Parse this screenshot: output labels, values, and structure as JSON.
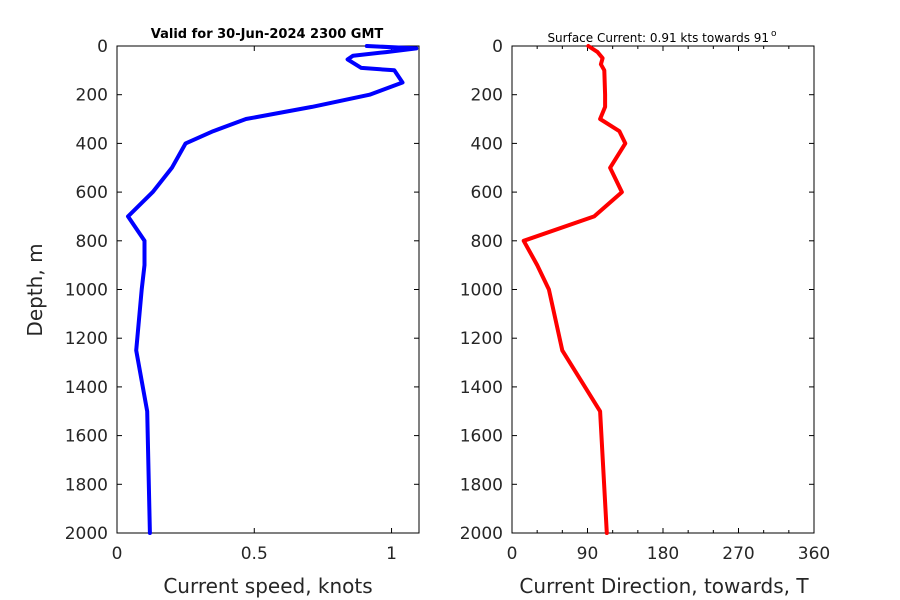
{
  "chart_data": [
    {
      "type": "line",
      "title": "Valid for 30-Jun-2024 2300 GMT",
      "xlabel": "Current speed, knots",
      "ylabel": "Depth, m",
      "xlim": [
        0,
        1.1
      ],
      "ylim": [
        0,
        2000
      ],
      "y_reversed": true,
      "xticks": [
        0,
        0.5,
        1
      ],
      "xtick_labels": [
        "0",
        "0.5",
        "1"
      ],
      "yticks": [
        0,
        200,
        400,
        600,
        800,
        1000,
        1200,
        1400,
        1600,
        1800,
        2000
      ],
      "ytick_labels": [
        "0",
        "200",
        "400",
        "600",
        "800",
        "1000",
        "1200",
        "1400",
        "1600",
        "1800",
        "2000"
      ],
      "grid": false,
      "series": [
        {
          "color": "#0000ff",
          "points": [
            {
              "speed": 0.91,
              "depth": 0
            },
            {
              "speed": 1.09,
              "depth": 10
            },
            {
              "speed": 0.98,
              "depth": 25
            },
            {
              "speed": 0.86,
              "depth": 40
            },
            {
              "speed": 0.84,
              "depth": 55
            },
            {
              "speed": 0.89,
              "depth": 90
            },
            {
              "speed": 1.01,
              "depth": 100
            },
            {
              "speed": 1.04,
              "depth": 150
            },
            {
              "speed": 0.92,
              "depth": 200
            },
            {
              "speed": 0.71,
              "depth": 250
            },
            {
              "speed": 0.47,
              "depth": 300
            },
            {
              "speed": 0.35,
              "depth": 350
            },
            {
              "speed": 0.25,
              "depth": 400
            },
            {
              "speed": 0.2,
              "depth": 500
            },
            {
              "speed": 0.13,
              "depth": 600
            },
            {
              "speed": 0.04,
              "depth": 700
            },
            {
              "speed": 0.1,
              "depth": 800
            },
            {
              "speed": 0.1,
              "depth": 900
            },
            {
              "speed": 0.09,
              "depth": 1000
            },
            {
              "speed": 0.07,
              "depth": 1250
            },
            {
              "speed": 0.11,
              "depth": 1500
            },
            {
              "speed": 0.12,
              "depth": 2000
            }
          ]
        }
      ]
    },
    {
      "type": "line",
      "title": "Surface Current: 0.91 kts towards 91",
      "title_superscript": "o",
      "xlabel": "Current Direction, towards, T",
      "ylabel": "",
      "xlim": [
        0,
        360
      ],
      "ylim": [
        0,
        2000
      ],
      "y_reversed": true,
      "xticks": [
        0,
        90,
        180,
        270,
        360
      ],
      "xtick_labels": [
        "0",
        "90",
        "180",
        "270",
        "360"
      ],
      "xminor_ticks": [
        30,
        60,
        120,
        150,
        210,
        240,
        300,
        330
      ],
      "yticks": [
        0,
        200,
        400,
        600,
        800,
        1000,
        1200,
        1400,
        1600,
        1800,
        2000
      ],
      "ytick_labels": [
        "0",
        "200",
        "400",
        "600",
        "800",
        "1000",
        "1200",
        "1400",
        "1600",
        "1800",
        "2000"
      ],
      "grid": false,
      "series": [
        {
          "color": "#ff0000",
          "points": [
            {
              "direction": 91,
              "depth": 0
            },
            {
              "direction": 102,
              "depth": 25
            },
            {
              "direction": 108,
              "depth": 50
            },
            {
              "direction": 106,
              "depth": 75
            },
            {
              "direction": 110,
              "depth": 100
            },
            {
              "direction": 111,
              "depth": 200
            },
            {
              "direction": 111,
              "depth": 250
            },
            {
              "direction": 105,
              "depth": 300
            },
            {
              "direction": 128,
              "depth": 350
            },
            {
              "direction": 135,
              "depth": 400
            },
            {
              "direction": 117,
              "depth": 500
            },
            {
              "direction": 131,
              "depth": 600
            },
            {
              "direction": 98,
              "depth": 700
            },
            {
              "direction": 14,
              "depth": 800
            },
            {
              "direction": 30,
              "depth": 900
            },
            {
              "direction": 44,
              "depth": 1000
            },
            {
              "direction": 60,
              "depth": 1250
            },
            {
              "direction": 105,
              "depth": 1500
            },
            {
              "direction": 113,
              "depth": 2000
            }
          ]
        }
      ]
    }
  ]
}
